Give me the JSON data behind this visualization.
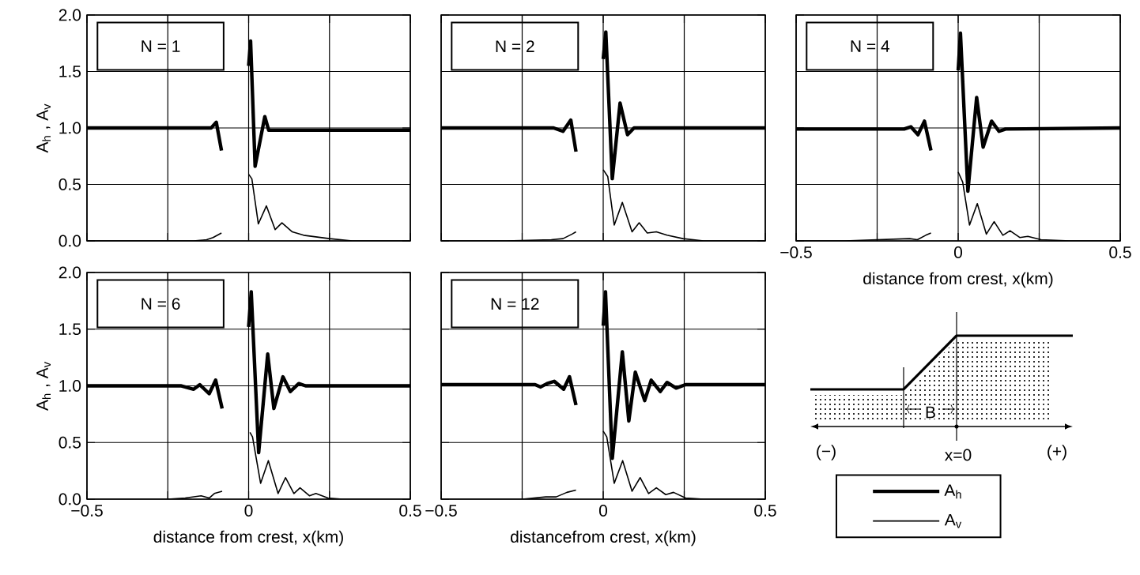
{
  "chart_data": [
    {
      "type": "line",
      "title": "N = 1",
      "ylabel": "A$_{h}$  ,  A$_{v}$",
      "xlim": [
        -0.5,
        0.5
      ],
      "ylim": [
        0,
        2
      ],
      "grid": true,
      "tick_labels": "y",
      "xticks": [
        {
          "value": -0.5,
          "label": null
        },
        {
          "value": -0.25,
          "label": null
        },
        {
          "value": 0,
          "label": null
        },
        {
          "value": 0.25,
          "label": null
        },
        {
          "value": 0.5,
          "label": null
        }
      ],
      "yticks": [
        {
          "value": 0,
          "label": "0.0"
        },
        {
          "value": 0.5,
          "label": "0.5"
        },
        {
          "value": 1,
          "label": "1.0"
        },
        {
          "value": 1.5,
          "label": "1.5"
        },
        {
          "value": 2,
          "label": "2.0"
        }
      ],
      "series": [
        {
          "color": "#000000",
          "x": [
            -0.5,
            -0.2,
            -0.13,
            -0.116,
            -0.1,
            -0.084,
            -0.04,
            0,
            0.006,
            0.02,
            0.05,
            0.062,
            0.1,
            0.5
          ],
          "values": [
            1.0,
            1.0,
            1.0,
            1.0,
            1.05,
            0.8,
            null,
            1.55,
            1.77,
            0.66,
            1.1,
            0.98,
            0.98,
            0.98
          ]
        },
        {
          "color": "#000000",
          "x": [
            -0.5,
            -0.25,
            -0.17,
            -0.13,
            -0.11,
            -0.084,
            -0.04,
            0,
            0.01,
            0.03,
            0.055,
            0.082,
            0.103,
            0.135,
            0.17,
            0.25,
            0.32,
            0.5
          ],
          "values": [
            0,
            0,
            0,
            0.01,
            0.03,
            0.07,
            null,
            0.59,
            0.55,
            0.15,
            0.31,
            0.1,
            0.16,
            0.08,
            0.05,
            0.02,
            0,
            0
          ]
        }
      ]
    },
    {
      "type": "line",
      "title": "N = 2",
      "xlim": [
        -0.5,
        0.5
      ],
      "ylim": [
        0,
        2
      ],
      "grid": true,
      "tick_labels": false,
      "xticks": [
        {
          "value": -0.5,
          "label": null
        },
        {
          "value": -0.25,
          "label": null
        },
        {
          "value": 0,
          "label": null
        },
        {
          "value": 0.25,
          "label": null
        },
        {
          "value": 0.5,
          "label": null
        }
      ],
      "yticks": [
        {
          "value": 0,
          "label": null
        },
        {
          "value": 0.5,
          "label": null
        },
        {
          "value": 1,
          "label": null
        },
        {
          "value": 1.5,
          "label": null
        },
        {
          "value": 2,
          "label": null
        }
      ],
      "series": [
        {
          "color": "#000000",
          "x": [
            -0.5,
            -0.153,
            -0.124,
            -0.1,
            -0.084,
            -0.04,
            0,
            0.008,
            0.028,
            0.052,
            0.075,
            0.095,
            0.5
          ],
          "values": [
            1.0,
            1.0,
            0.97,
            1.07,
            0.79,
            null,
            1.61,
            1.85,
            0.55,
            1.22,
            0.94,
            1.0,
            1.0
          ]
        },
        {
          "color": "#000000",
          "x": [
            -0.5,
            -0.3,
            -0.16,
            -0.124,
            -0.096,
            -0.084,
            -0.04,
            0,
            0.014,
            0.034,
            0.059,
            0.089,
            0.111,
            0.136,
            0.164,
            0.197,
            0.246,
            0.31,
            0.5
          ],
          "values": [
            0,
            0,
            0.01,
            0.02,
            0.06,
            0.08,
            null,
            0.63,
            0.57,
            0.14,
            0.34,
            0.08,
            0.16,
            0.07,
            0.08,
            0.05,
            0.02,
            0,
            0
          ]
        }
      ]
    },
    {
      "type": "line",
      "title": "N = 4",
      "xlabel": "distance from crest,  x(km)",
      "xlim": [
        -0.5,
        0.5
      ],
      "ylim": [
        0,
        2
      ],
      "grid": true,
      "tick_labels": "x",
      "xticks": [
        {
          "value": -0.5,
          "label": "−0.5"
        },
        {
          "value": -0.25,
          "label": null
        },
        {
          "value": 0,
          "label": "0"
        },
        {
          "value": 0.25,
          "label": null
        },
        {
          "value": 0.5,
          "label": "0.5"
        }
      ],
      "yticks": [
        {
          "value": 0,
          "label": null
        },
        {
          "value": 0.5,
          "label": null
        },
        {
          "value": 1,
          "label": null
        },
        {
          "value": 1.5,
          "label": null
        },
        {
          "value": 2,
          "label": null
        }
      ],
      "series": [
        {
          "color": "#000000",
          "x": [
            -0.5,
            -0.183,
            -0.167,
            -0.146,
            -0.124,
            -0.104,
            -0.084,
            -0.04,
            0,
            0.007,
            0.03,
            0.057,
            0.077,
            0.103,
            0.126,
            0.146,
            0.5
          ],
          "values": [
            0.99,
            0.99,
            0.99,
            1.01,
            0.94,
            1.06,
            0.8,
            null,
            1.51,
            1.84,
            0.44,
            1.27,
            0.83,
            1.06,
            0.97,
            0.99,
            1.0
          ]
        },
        {
          "color": "#000000",
          "x": [
            -0.5,
            -0.35,
            -0.15,
            -0.126,
            -0.1,
            -0.084,
            -0.04,
            0,
            0.014,
            0.035,
            0.059,
            0.087,
            0.111,
            0.138,
            0.16,
            0.19,
            0.215,
            0.256,
            0.345,
            0.5
          ],
          "values": [
            0,
            0,
            0.02,
            0.01,
            0.05,
            0.07,
            null,
            0.61,
            0.52,
            0.14,
            0.33,
            0.06,
            0.17,
            0.05,
            0.09,
            0.03,
            0.04,
            0.01,
            0,
            0
          ]
        }
      ]
    },
    {
      "type": "line",
      "title": "N = 6",
      "xlabel": "distance from crest,  x(km)",
      "ylabel": "A$_{h}$  ,  A$_{v}$",
      "xlim": [
        -0.5,
        0.5
      ],
      "ylim": [
        0,
        2
      ],
      "grid": true,
      "xticks": [
        {
          "value": -0.5,
          "label": "−0.5"
        },
        {
          "value": -0.25,
          "label": null
        },
        {
          "value": 0,
          "label": "0"
        },
        {
          "value": 0.25,
          "label": null
        },
        {
          "value": 0.5,
          "label": "0.5"
        }
      ],
      "yticks": [
        {
          "value": 0,
          "label": "0.0"
        },
        {
          "value": 0.5,
          "label": "0.5"
        },
        {
          "value": 1,
          "label": "1.0"
        },
        {
          "value": 1.5,
          "label": "1.5"
        },
        {
          "value": 2,
          "label": "2.0"
        }
      ],
      "series": [
        {
          "color": "#000000",
          "x": [
            -0.5,
            -0.21,
            -0.17,
            -0.151,
            -0.122,
            -0.102,
            -0.082,
            -0.04,
            0,
            0.008,
            0.031,
            0.059,
            0.078,
            0.106,
            0.129,
            0.155,
            0.176,
            0.5
          ],
          "values": [
            1.0,
            1.0,
            0.97,
            1.01,
            0.93,
            1.05,
            0.8,
            null,
            1.52,
            1.83,
            0.41,
            1.28,
            0.8,
            1.08,
            0.95,
            1.02,
            1.0,
            1.0
          ]
        },
        {
          "color": "#000000",
          "x": [
            -0.5,
            -0.25,
            -0.196,
            -0.147,
            -0.122,
            -0.106,
            -0.082,
            -0.04,
            0.004,
            0.012,
            0.037,
            0.061,
            0.091,
            0.114,
            0.14,
            0.159,
            0.188,
            0.208,
            0.245,
            0.29,
            0.5
          ],
          "values": [
            0,
            0,
            0.01,
            0.03,
            0.01,
            0.05,
            0.07,
            null,
            0.59,
            0.55,
            0.14,
            0.34,
            0.05,
            0.19,
            0.05,
            0.1,
            0.03,
            0.05,
            0.01,
            0,
            0
          ]
        }
      ]
    },
    {
      "type": "line",
      "title": "N = 12",
      "xlabel": "distancefrom crest,  x(km)",
      "xlim": [
        -0.5,
        0.5
      ],
      "ylim": [
        0,
        2
      ],
      "grid": true,
      "tick_labels": "x",
      "legend": "right",
      "xticks": [
        {
          "value": -0.5,
          "label": "−0.5"
        },
        {
          "value": -0.25,
          "label": null
        },
        {
          "value": 0,
          "label": "0"
        },
        {
          "value": 0.25,
          "label": null
        },
        {
          "value": 0.5,
          "label": "0.5"
        }
      ],
      "yticks": [
        {
          "value": 0,
          "label": null
        },
        {
          "value": 0.5,
          "label": null
        },
        {
          "value": 1,
          "label": null
        },
        {
          "value": 1.5,
          "label": null
        },
        {
          "value": 2,
          "label": null
        }
      ],
      "series": [
        {
          "name": "A$_{h}$",
          "color": "#000000",
          "x": [
            -0.5,
            -0.242,
            -0.21,
            -0.193,
            -0.173,
            -0.151,
            -0.122,
            -0.104,
            -0.084,
            -0.04,
            0,
            0.007,
            0.028,
            0.059,
            0.079,
            0.099,
            0.128,
            0.148,
            0.176,
            0.197,
            0.225,
            0.254,
            0.5
          ],
          "values": [
            1.01,
            1.01,
            1.01,
            0.99,
            1.02,
            1.04,
            0.97,
            1.08,
            0.83,
            null,
            1.53,
            1.83,
            0.36,
            1.3,
            0.69,
            1.12,
            0.87,
            1.05,
            0.95,
            1.03,
            0.98,
            1.01,
            1.01
          ]
        },
        {
          "name": "A$_{v}$",
          "color": "#000000",
          "x": [
            -0.5,
            -0.25,
            -0.177,
            -0.145,
            -0.112,
            -0.084,
            -0.04,
            0,
            0.011,
            0.034,
            0.06,
            0.089,
            0.114,
            0.14,
            0.164,
            0.193,
            0.217,
            0.254,
            0.31,
            0.5
          ],
          "values": [
            0,
            0,
            0.02,
            0.02,
            0.06,
            0.08,
            null,
            0.6,
            0.55,
            0.14,
            0.34,
            0.07,
            0.19,
            0.05,
            0.1,
            0.04,
            0.06,
            0.01,
            0,
            0
          ]
        }
      ]
    },
    {
      "type": "other",
      "annotations": [
        "B",
        "(−)",
        "x=0",
        "(+)"
      ]
    }
  ]
}
